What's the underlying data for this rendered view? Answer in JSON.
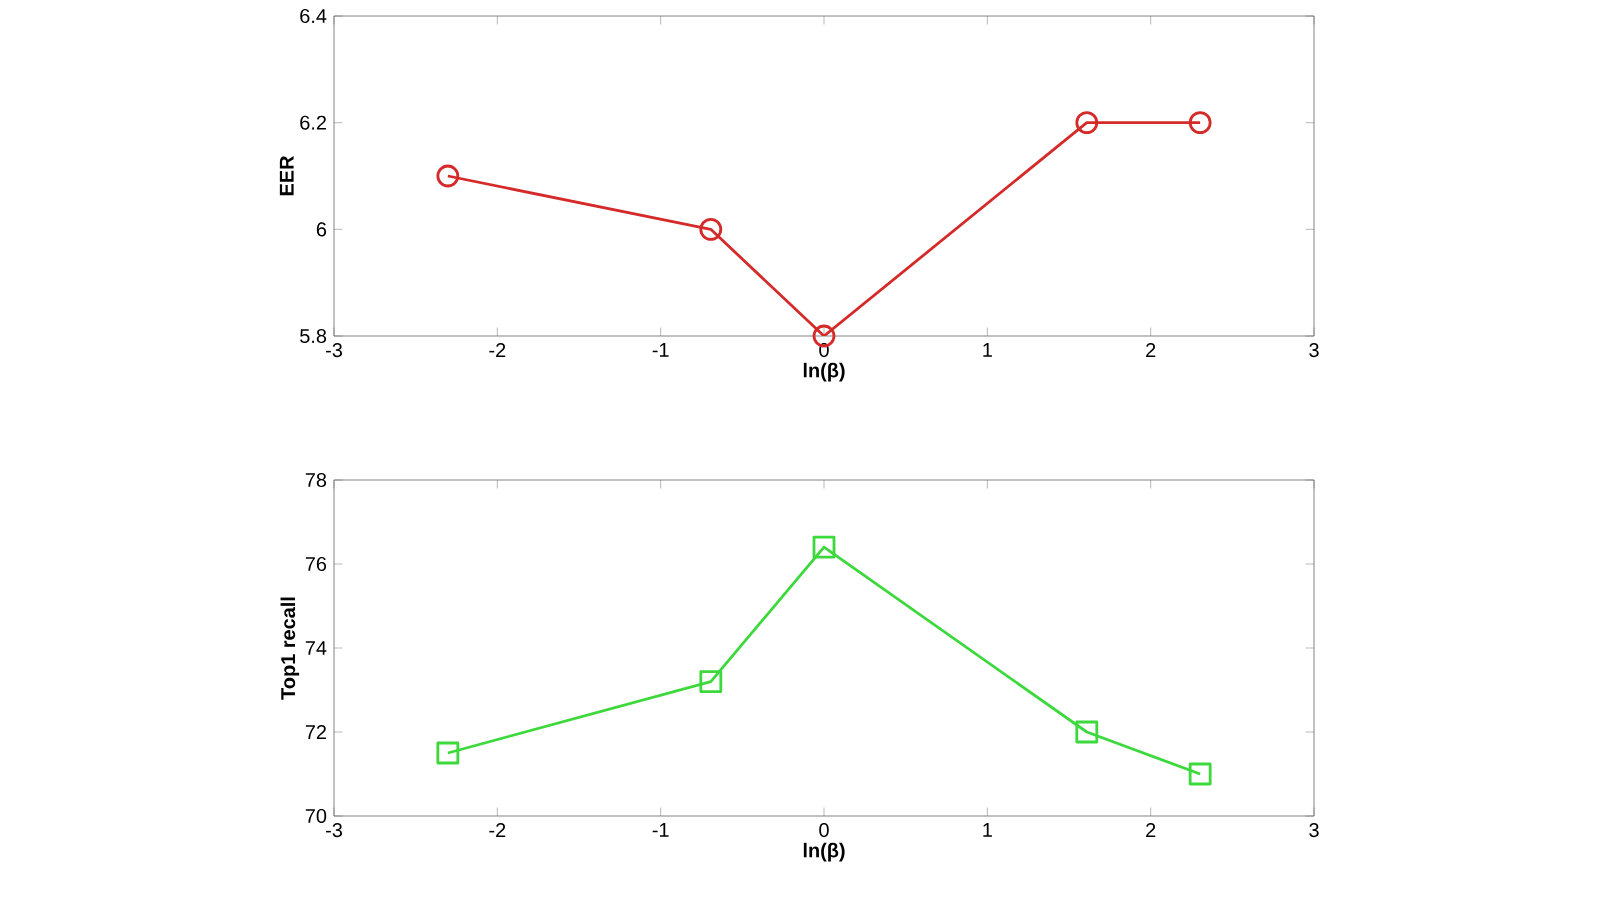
{
  "chart_data": [
    {
      "type": "line",
      "xlabel": "ln(β)",
      "ylabel": "EER",
      "x": [
        -2.303,
        -0.693,
        0,
        1.609,
        2.303
      ],
      "series": [
        {
          "color": "#d42a2a",
          "values": [
            6.1,
            6.0,
            5.8,
            6.2,
            6.2
          ]
        }
      ],
      "xlim": [
        -3,
        3
      ],
      "xticks": [
        -3,
        -2,
        -1,
        0,
        1,
        2,
        3
      ],
      "ylim": [
        5.8,
        6.4
      ],
      "yticks": [
        5.8,
        6,
        6.2,
        6.4
      ],
      "marker": "circle",
      "line_style": "solid"
    },
    {
      "type": "line",
      "xlabel": "ln(β)",
      "ylabel": "Top1 recall",
      "x": [
        -2.303,
        -0.693,
        0,
        1.609,
        2.303
      ],
      "series": [
        {
          "color": "#3cd83c",
          "values": [
            71.5,
            73.2,
            76.4,
            72.0,
            71.0
          ]
        }
      ],
      "xlim": [
        -3,
        3
      ],
      "xticks": [
        -3,
        -2,
        -1,
        0,
        1,
        2,
        3
      ],
      "ylim": [
        70,
        78
      ],
      "yticks": [
        70,
        72,
        74,
        76,
        78
      ],
      "marker": "square",
      "line_style": "solid"
    }
  ]
}
